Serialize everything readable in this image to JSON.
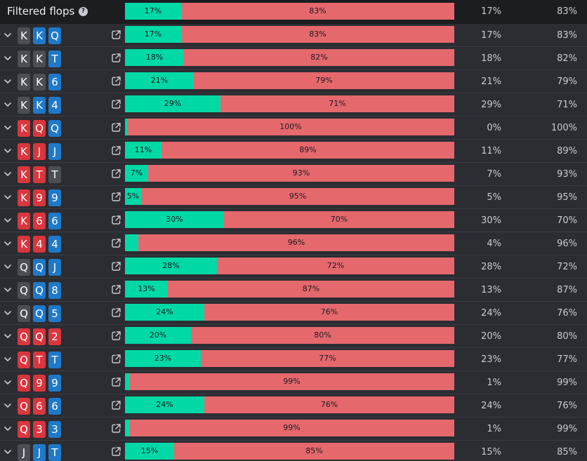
{
  "header": {
    "title": "Filtered flops",
    "help_icon": "?",
    "green_label": "17%",
    "red_label": "83%",
    "green_fraction": 0.17,
    "col_a": "17%",
    "col_b": "83%"
  },
  "colors": {
    "green": "#00d9a6",
    "red": "#e5686d",
    "spade": "#4b4f55",
    "heart": "#d9363e",
    "blue": "#1f79c9"
  },
  "rows": [
    {
      "cards": [
        {
          "rank": "K",
          "suit": "s"
        },
        {
          "rank": "K",
          "suit": "c"
        },
        {
          "rank": "Q",
          "suit": "c"
        }
      ],
      "green_label": "17%",
      "red_label": "83%",
      "green_fraction": 0.17,
      "col_a": "17%",
      "col_b": "83%"
    },
    {
      "cards": [
        {
          "rank": "K",
          "suit": "s"
        },
        {
          "rank": "K",
          "suit": "s"
        },
        {
          "rank": "T",
          "suit": "c"
        }
      ],
      "green_label": "18%",
      "red_label": "82%",
      "green_fraction": 0.18,
      "col_a": "18%",
      "col_b": "82%"
    },
    {
      "cards": [
        {
          "rank": "K",
          "suit": "s"
        },
        {
          "rank": "K",
          "suit": "s"
        },
        {
          "rank": "6",
          "suit": "c"
        }
      ],
      "green_label": "21%",
      "red_label": "79%",
      "green_fraction": 0.21,
      "col_a": "21%",
      "col_b": "79%"
    },
    {
      "cards": [
        {
          "rank": "K",
          "suit": "s"
        },
        {
          "rank": "K",
          "suit": "c"
        },
        {
          "rank": "4",
          "suit": "c"
        }
      ],
      "green_label": "29%",
      "red_label": "71%",
      "green_fraction": 0.29,
      "col_a": "29%",
      "col_b": "71%"
    },
    {
      "cards": [
        {
          "rank": "K",
          "suit": "h"
        },
        {
          "rank": "Q",
          "suit": "h"
        },
        {
          "rank": "Q",
          "suit": "c"
        }
      ],
      "green_label": "",
      "red_label": "100%",
      "green_fraction": 0.005,
      "col_a": "0%",
      "col_b": "100%"
    },
    {
      "cards": [
        {
          "rank": "K",
          "suit": "h"
        },
        {
          "rank": "J",
          "suit": "h"
        },
        {
          "rank": "J",
          "suit": "c"
        }
      ],
      "green_label": "11%",
      "red_label": "89%",
      "green_fraction": 0.11,
      "col_a": "11%",
      "col_b": "89%"
    },
    {
      "cards": [
        {
          "rank": "K",
          "suit": "h"
        },
        {
          "rank": "T",
          "suit": "h"
        },
        {
          "rank": "T",
          "suit": "s"
        }
      ],
      "green_label": "7%",
      "red_label": "93%",
      "green_fraction": 0.07,
      "col_a": "7%",
      "col_b": "93%"
    },
    {
      "cards": [
        {
          "rank": "K",
          "suit": "h"
        },
        {
          "rank": "9",
          "suit": "h"
        },
        {
          "rank": "9",
          "suit": "c"
        }
      ],
      "green_label": "5%",
      "red_label": "95%",
      "green_fraction": 0.05,
      "col_a": "5%",
      "col_b": "95%"
    },
    {
      "cards": [
        {
          "rank": "K",
          "suit": "h"
        },
        {
          "rank": "6",
          "suit": "h"
        },
        {
          "rank": "6",
          "suit": "c"
        }
      ],
      "green_label": "30%",
      "red_label": "70%",
      "green_fraction": 0.3,
      "col_a": "30%",
      "col_b": "70%"
    },
    {
      "cards": [
        {
          "rank": "K",
          "suit": "h"
        },
        {
          "rank": "4",
          "suit": "h"
        },
        {
          "rank": "4",
          "suit": "c"
        }
      ],
      "green_label": "",
      "red_label": "96%",
      "green_fraction": 0.04,
      "col_a": "4%",
      "col_b": "96%"
    },
    {
      "cards": [
        {
          "rank": "Q",
          "suit": "s"
        },
        {
          "rank": "Q",
          "suit": "c"
        },
        {
          "rank": "J",
          "suit": "c"
        }
      ],
      "green_label": "28%",
      "red_label": "72%",
      "green_fraction": 0.28,
      "col_a": "28%",
      "col_b": "72%"
    },
    {
      "cards": [
        {
          "rank": "Q",
          "suit": "s"
        },
        {
          "rank": "Q",
          "suit": "c"
        },
        {
          "rank": "8",
          "suit": "c"
        }
      ],
      "green_label": "13%",
      "red_label": "87%",
      "green_fraction": 0.13,
      "col_a": "13%",
      "col_b": "87%"
    },
    {
      "cards": [
        {
          "rank": "Q",
          "suit": "s"
        },
        {
          "rank": "Q",
          "suit": "c"
        },
        {
          "rank": "5",
          "suit": "c"
        }
      ],
      "green_label": "24%",
      "red_label": "76%",
      "green_fraction": 0.24,
      "col_a": "24%",
      "col_b": "76%"
    },
    {
      "cards": [
        {
          "rank": "Q",
          "suit": "h"
        },
        {
          "rank": "Q",
          "suit": "h"
        },
        {
          "rank": "2",
          "suit": "h"
        }
      ],
      "green_label": "20%",
      "red_label": "80%",
      "green_fraction": 0.2,
      "col_a": "20%",
      "col_b": "80%"
    },
    {
      "cards": [
        {
          "rank": "Q",
          "suit": "h"
        },
        {
          "rank": "T",
          "suit": "h"
        },
        {
          "rank": "T",
          "suit": "c"
        }
      ],
      "green_label": "23%",
      "red_label": "77%",
      "green_fraction": 0.23,
      "col_a": "23%",
      "col_b": "77%"
    },
    {
      "cards": [
        {
          "rank": "Q",
          "suit": "h"
        },
        {
          "rank": "9",
          "suit": "h"
        },
        {
          "rank": "9",
          "suit": "c"
        }
      ],
      "green_label": "",
      "red_label": "99%",
      "green_fraction": 0.012,
      "col_a": "1%",
      "col_b": "99%"
    },
    {
      "cards": [
        {
          "rank": "Q",
          "suit": "h"
        },
        {
          "rank": "6",
          "suit": "h"
        },
        {
          "rank": "6",
          "suit": "c"
        }
      ],
      "green_label": "24%",
      "red_label": "76%",
      "green_fraction": 0.24,
      "col_a": "24%",
      "col_b": "76%"
    },
    {
      "cards": [
        {
          "rank": "Q",
          "suit": "h"
        },
        {
          "rank": "3",
          "suit": "h"
        },
        {
          "rank": "3",
          "suit": "c"
        }
      ],
      "green_label": "",
      "red_label": "99%",
      "green_fraction": 0.012,
      "col_a": "1%",
      "col_b": "99%"
    },
    {
      "cards": [
        {
          "rank": "J",
          "suit": "s"
        },
        {
          "rank": "J",
          "suit": "c"
        },
        {
          "rank": "T",
          "suit": "c"
        }
      ],
      "green_label": "15%",
      "red_label": "85%",
      "green_fraction": 0.15,
      "col_a": "15%",
      "col_b": "85%"
    }
  ]
}
